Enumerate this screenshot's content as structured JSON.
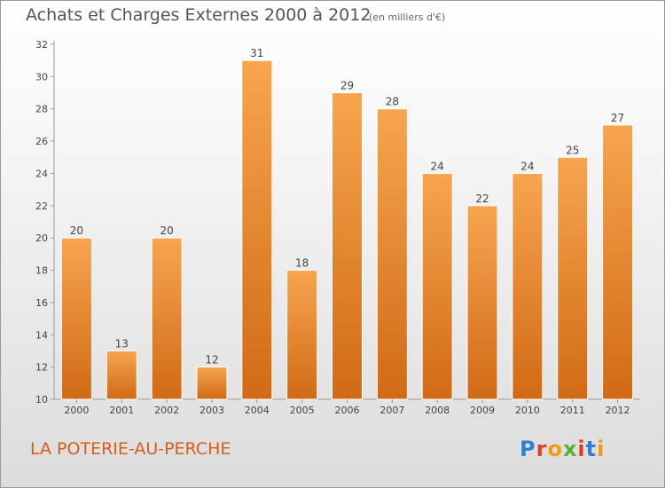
{
  "header": {
    "title": "Achats et Charges Externes 2000 à 2012",
    "subtitle": "(en milliers d'€)"
  },
  "footer": {
    "town": "LA POTERIE-AU-PERCHE",
    "brand": "Proxiti"
  },
  "colors": {
    "bar_light": "#f7a54e",
    "bar_dark": "#d16a15",
    "town_text": "#d65c1f",
    "brand_letters": [
      "#2e7fd6",
      "#e23b2a",
      "#f29a17",
      "#55b232",
      "#e23b2a",
      "#2e7fd6",
      "#f29a17"
    ]
  },
  "chart_data": {
    "type": "bar",
    "categories": [
      "2000",
      "2001",
      "2002",
      "2003",
      "2004",
      "2005",
      "2006",
      "2007",
      "2008",
      "2009",
      "2010",
      "2011",
      "2012"
    ],
    "values": [
      20,
      13,
      20,
      12,
      31,
      18,
      29,
      28,
      24,
      22,
      24,
      25,
      27
    ],
    "title": "Achats et Charges Externes 2000 à 2012",
    "ylim": [
      10,
      32
    ],
    "yticks": [
      10,
      12,
      14,
      16,
      18,
      20,
      22,
      24,
      26,
      28,
      30,
      32
    ],
    "grid": false
  }
}
